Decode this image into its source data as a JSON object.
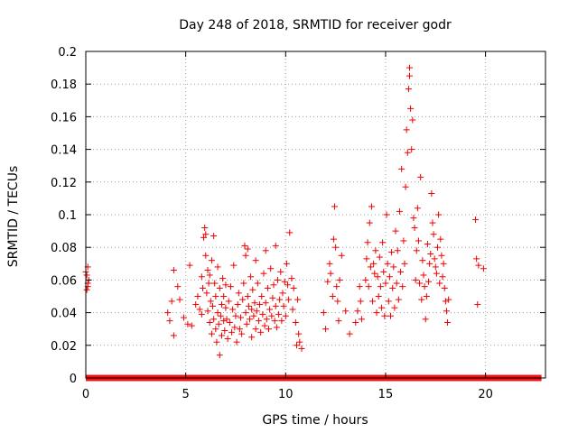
{
  "chart_data": {
    "type": "scatter",
    "title": "Day 248 of 2018, SRMTID for receiver godr",
    "xlabel": "GPS time / hours",
    "ylabel": "SRMTID / TECUs",
    "xlim": [
      0,
      23
    ],
    "ylim": [
      0,
      0.2
    ],
    "x_ticks": [
      0,
      5,
      10,
      15,
      20
    ],
    "x_tick_labels": [
      "0",
      "5",
      "10",
      "15",
      "20"
    ],
    "y_ticks": [
      0,
      0.02,
      0.04,
      0.06,
      0.08,
      0.1,
      0.12,
      0.14,
      0.16,
      0.18,
      0.2
    ],
    "y_tick_labels": [
      "0",
      "0.02",
      "0.04",
      "0.06",
      "0.08",
      "0.1",
      "0.12",
      "0.14",
      "0.16",
      "0.18",
      "0.2"
    ],
    "grid": true,
    "marker": "+",
    "color": "#ee0000",
    "zero_line_range_hours": [
      0,
      22.8
    ],
    "series": [
      {
        "name": "SRMTID",
        "points": [
          [
            0.0,
            0.065
          ],
          [
            0.05,
            0.063
          ],
          [
            0.1,
            0.068
          ],
          [
            0.1,
            0.058
          ],
          [
            0.05,
            0.054
          ],
          [
            0.15,
            0.06
          ],
          [
            0.1,
            0.056
          ],
          [
            4.1,
            0.04
          ],
          [
            4.2,
            0.035
          ],
          [
            4.3,
            0.047
          ],
          [
            4.4,
            0.066
          ],
          [
            4.4,
            0.026
          ],
          [
            4.6,
            0.056
          ],
          [
            4.7,
            0.048
          ],
          [
            4.9,
            0.037
          ],
          [
            5.1,
            0.033
          ],
          [
            5.2,
            0.069
          ],
          [
            5.3,
            0.032
          ],
          [
            5.5,
            0.045
          ],
          [
            5.6,
            0.05
          ],
          [
            5.7,
            0.042
          ],
          [
            5.8,
            0.039
          ],
          [
            5.8,
            0.062
          ],
          [
            5.85,
            0.055
          ],
          [
            5.9,
            0.086
          ],
          [
            5.95,
            0.092
          ],
          [
            6.0,
            0.088
          ],
          [
            6.0,
            0.075
          ],
          [
            6.05,
            0.052
          ],
          [
            6.1,
            0.066
          ],
          [
            6.1,
            0.041
          ],
          [
            6.15,
            0.058
          ],
          [
            6.2,
            0.034
          ],
          [
            6.2,
            0.063
          ],
          [
            6.25,
            0.047
          ],
          [
            6.3,
            0.027
          ],
          [
            6.3,
            0.072
          ],
          [
            6.35,
            0.044
          ],
          [
            6.4,
            0.036
          ],
          [
            6.4,
            0.087
          ],
          [
            6.45,
            0.058
          ],
          [
            6.5,
            0.03
          ],
          [
            6.5,
            0.05
          ],
          [
            6.55,
            0.022
          ],
          [
            6.6,
            0.04
          ],
          [
            6.6,
            0.068
          ],
          [
            6.65,
            0.033
          ],
          [
            6.7,
            0.055
          ],
          [
            6.7,
            0.014
          ],
          [
            6.75,
            0.038
          ],
          [
            6.8,
            0.045
          ],
          [
            6.8,
            0.026
          ],
          [
            6.85,
            0.061
          ],
          [
            6.9,
            0.035
          ],
          [
            6.9,
            0.05
          ],
          [
            6.95,
            0.029
          ],
          [
            7.0,
            0.043
          ],
          [
            7.0,
            0.057
          ],
          [
            7.05,
            0.036
          ],
          [
            7.1,
            0.024
          ],
          [
            7.15,
            0.047
          ],
          [
            7.2,
            0.034
          ],
          [
            7.25,
            0.056
          ],
          [
            7.3,
            0.028
          ],
          [
            7.35,
            0.042
          ],
          [
            7.4,
            0.069
          ],
          [
            7.45,
            0.031
          ],
          [
            7.5,
            0.038
          ],
          [
            7.55,
            0.022
          ],
          [
            7.6,
            0.045
          ],
          [
            7.65,
            0.052
          ],
          [
            7.7,
            0.03
          ],
          [
            7.75,
            0.037
          ],
          [
            7.8,
            0.027
          ],
          [
            7.85,
            0.048
          ],
          [
            7.9,
            0.058
          ],
          [
            7.95,
            0.081
          ],
          [
            8.0,
            0.075
          ],
          [
            8.0,
            0.04
          ],
          [
            8.05,
            0.033
          ],
          [
            8.1,
            0.079
          ],
          [
            8.1,
            0.05
          ],
          [
            8.15,
            0.044
          ],
          [
            8.2,
            0.036
          ],
          [
            8.25,
            0.062
          ],
          [
            8.3,
            0.042
          ],
          [
            8.3,
            0.025
          ],
          [
            8.35,
            0.054
          ],
          [
            8.4,
            0.038
          ],
          [
            8.45,
            0.046
          ],
          [
            8.5,
            0.072
          ],
          [
            8.5,
            0.03
          ],
          [
            8.55,
            0.041
          ],
          [
            8.6,
            0.058
          ],
          [
            8.65,
            0.035
          ],
          [
            8.7,
            0.045
          ],
          [
            8.75,
            0.028
          ],
          [
            8.8,
            0.05
          ],
          [
            8.85,
            0.039
          ],
          [
            8.9,
            0.064
          ],
          [
            8.95,
            0.032
          ],
          [
            9.0,
            0.046
          ],
          [
            9.0,
            0.078
          ],
          [
            9.05,
            0.036
          ],
          [
            9.1,
            0.055
          ],
          [
            9.15,
            0.03
          ],
          [
            9.2,
            0.042
          ],
          [
            9.25,
            0.067
          ],
          [
            9.3,
            0.038
          ],
          [
            9.35,
            0.049
          ],
          [
            9.4,
            0.057
          ],
          [
            9.45,
            0.035
          ],
          [
            9.5,
            0.081
          ],
          [
            9.5,
            0.044
          ],
          [
            9.55,
            0.031
          ],
          [
            9.6,
            0.06
          ],
          [
            9.65,
            0.039
          ],
          [
            9.7,
            0.048
          ],
          [
            9.75,
            0.065
          ],
          [
            9.8,
            0.035
          ],
          [
            9.85,
            0.052
          ],
          [
            9.9,
            0.044
          ],
          [
            9.95,
            0.059
          ],
          [
            10.0,
            0.038
          ],
          [
            10.05,
            0.07
          ],
          [
            10.1,
            0.057
          ],
          [
            10.15,
            0.048
          ],
          [
            10.2,
            0.089
          ],
          [
            10.3,
            0.061
          ],
          [
            10.35,
            0.042
          ],
          [
            10.4,
            0.055
          ],
          [
            10.5,
            0.034
          ],
          [
            10.55,
            0.02
          ],
          [
            10.6,
            0.048
          ],
          [
            10.65,
            0.027
          ],
          [
            10.7,
            0.022
          ],
          [
            10.8,
            0.018
          ],
          [
            11.9,
            0.04
          ],
          [
            12.0,
            0.03
          ],
          [
            12.1,
            0.059
          ],
          [
            12.2,
            0.07
          ],
          [
            12.25,
            0.064
          ],
          [
            12.35,
            0.05
          ],
          [
            12.4,
            0.085
          ],
          [
            12.45,
            0.105
          ],
          [
            12.5,
            0.08
          ],
          [
            12.55,
            0.056
          ],
          [
            12.6,
            0.047
          ],
          [
            12.65,
            0.035
          ],
          [
            12.7,
            0.06
          ],
          [
            12.8,
            0.075
          ],
          [
            13.0,
            0.041
          ],
          [
            13.2,
            0.027
          ],
          [
            13.5,
            0.034
          ],
          [
            13.6,
            0.041
          ],
          [
            13.7,
            0.056
          ],
          [
            13.75,
            0.047
          ],
          [
            13.8,
            0.036
          ],
          [
            14.0,
            0.06
          ],
          [
            14.05,
            0.073
          ],
          [
            14.1,
            0.083
          ],
          [
            14.15,
            0.056
          ],
          [
            14.2,
            0.095
          ],
          [
            14.25,
            0.068
          ],
          [
            14.3,
            0.105
          ],
          [
            14.35,
            0.047
          ],
          [
            14.4,
            0.07
          ],
          [
            14.45,
            0.064
          ],
          [
            14.5,
            0.078
          ],
          [
            14.55,
            0.04
          ],
          [
            14.6,
            0.062
          ],
          [
            14.65,
            0.05
          ],
          [
            14.7,
            0.074
          ],
          [
            14.75,
            0.056
          ],
          [
            14.8,
            0.043
          ],
          [
            14.85,
            0.083
          ],
          [
            14.9,
            0.065
          ],
          [
            14.95,
            0.038
          ],
          [
            15.0,
            0.058
          ],
          [
            15.05,
            0.1
          ],
          [
            15.1,
            0.07
          ],
          [
            15.15,
            0.047
          ],
          [
            15.2,
            0.062
          ],
          [
            15.25,
            0.038
          ],
          [
            15.3,
            0.077
          ],
          [
            15.35,
            0.055
          ],
          [
            15.4,
            0.068
          ],
          [
            15.45,
            0.043
          ],
          [
            15.5,
            0.09
          ],
          [
            15.55,
            0.058
          ],
          [
            15.6,
            0.078
          ],
          [
            15.65,
            0.048
          ],
          [
            15.7,
            0.102
          ],
          [
            15.75,
            0.065
          ],
          [
            15.8,
            0.128
          ],
          [
            15.85,
            0.056
          ],
          [
            15.9,
            0.084
          ],
          [
            15.95,
            0.07
          ],
          [
            16.0,
            0.117
          ],
          [
            16.05,
            0.152
          ],
          [
            16.1,
            0.138
          ],
          [
            16.15,
            0.177
          ],
          [
            16.2,
            0.19
          ],
          [
            16.2,
            0.185
          ],
          [
            16.25,
            0.165
          ],
          [
            16.3,
            0.14
          ],
          [
            16.35,
            0.158
          ],
          [
            16.4,
            0.098
          ],
          [
            16.45,
            0.092
          ],
          [
            16.5,
            0.06
          ],
          [
            16.55,
            0.078
          ],
          [
            16.6,
            0.104
          ],
          [
            16.65,
            0.084
          ],
          [
            16.7,
            0.058
          ],
          [
            16.75,
            0.123
          ],
          [
            16.8,
            0.048
          ],
          [
            16.85,
            0.072
          ],
          [
            16.9,
            0.063
          ],
          [
            16.95,
            0.056
          ],
          [
            17.0,
            0.036
          ],
          [
            17.05,
            0.05
          ],
          [
            17.1,
            0.082
          ],
          [
            17.15,
            0.059
          ],
          [
            17.2,
            0.07
          ],
          [
            17.25,
            0.076
          ],
          [
            17.3,
            0.113
          ],
          [
            17.35,
            0.095
          ],
          [
            17.4,
            0.088
          ],
          [
            17.45,
            0.073
          ],
          [
            17.5,
            0.068
          ],
          [
            17.55,
            0.064
          ],
          [
            17.6,
            0.08
          ],
          [
            17.65,
            0.1
          ],
          [
            17.7,
            0.058
          ],
          [
            17.75,
            0.085
          ],
          [
            17.8,
            0.075
          ],
          [
            17.85,
            0.062
          ],
          [
            17.9,
            0.07
          ],
          [
            17.95,
            0.055
          ],
          [
            18.0,
            0.047
          ],
          [
            18.05,
            0.041
          ],
          [
            18.1,
            0.034
          ],
          [
            18.15,
            0.048
          ],
          [
            19.5,
            0.097
          ],
          [
            19.55,
            0.073
          ],
          [
            19.6,
            0.045
          ],
          [
            19.65,
            0.069
          ],
          [
            19.9,
            0.067
          ]
        ]
      }
    ]
  }
}
